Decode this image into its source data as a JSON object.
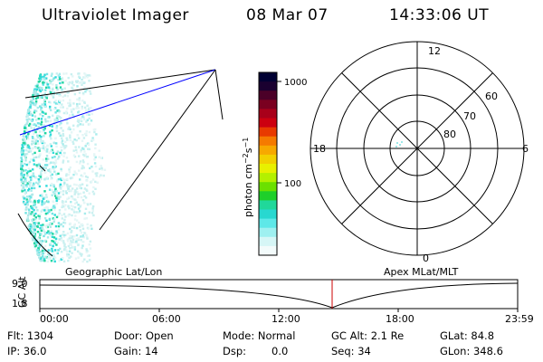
{
  "header": {
    "title": "Ultraviolet Imager",
    "date": "08 Mar 07",
    "time": "14:33:06 UT"
  },
  "colorbar": {
    "unit_prefix": "photon cm",
    "unit_sup1": "−2",
    "unit_mid": "s",
    "unit_sup2": "−1",
    "tick_labels": [
      "1000",
      "100"
    ],
    "colors": [
      "#000033",
      "#1a0030",
      "#4b0028",
      "#7a0020",
      "#a8001a",
      "#cc0010",
      "#e83a00",
      "#f57a00",
      "#f7a800",
      "#f2d000",
      "#e8f000",
      "#b4f000",
      "#6be000",
      "#1ecf2a",
      "#20d89a",
      "#28d8d0",
      "#5ee8e8",
      "#9ef0f0",
      "#d6f6f6",
      "#f3fbfb"
    ]
  },
  "polar_plot": {
    "mlt_labels": [
      "12",
      "18",
      "6",
      "0"
    ],
    "lat_labels": [
      "60",
      "70",
      "80"
    ]
  },
  "timeline": {
    "left_label": "Geographic Lat/Lon",
    "right_label": "Apex MLat/MLT",
    "axis_title": "GC Alt",
    "y_max": "9.0",
    "y_min": "1.8",
    "time_ticks": [
      "00:00",
      "06:00",
      "12:00",
      "18:00",
      "23:59"
    ],
    "marker_color": "#cc0000"
  },
  "info": {
    "flt": "Flt: 1304",
    "ip": "IP: 36.0",
    "door": "Door: Open",
    "gain": "Gain: 14",
    "mode": "Mode: Normal",
    "dsp_label": "Dsp:",
    "dsp_value": "0.0",
    "gc_alt": "GC Alt: 2.1 Re",
    "seq": "Seq: 34",
    "glat": "GLat:  84.8",
    "glon": "GLon: 348.6"
  }
}
